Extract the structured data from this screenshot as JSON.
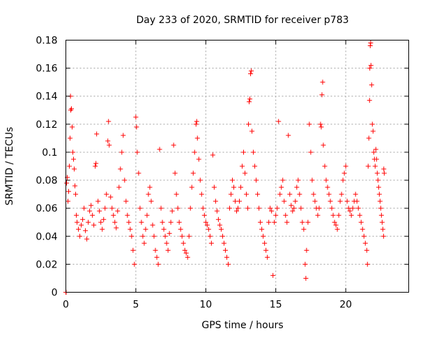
{
  "chart_data": {
    "type": "scatter",
    "title": "Day 233 of 2020, SRMTID for receiver p783",
    "xlabel": "GPS time / hours",
    "ylabel": "SRMTID / TECUs",
    "xlim": [
      0,
      24.5
    ],
    "ylim": [
      0,
      0.18
    ],
    "xticks": [
      0,
      5,
      10,
      15,
      20
    ],
    "xtick_labels": [
      "0",
      "5",
      "10",
      "15",
      "20"
    ],
    "yticks": [
      0,
      0.02,
      0.04,
      0.06,
      0.08,
      0.1,
      0.12,
      0.14,
      0.16,
      0.18
    ],
    "ytick_labels": [
      "0",
      "0.02",
      "0.04",
      "0.06",
      "0.08",
      "0.1",
      "0.12",
      "0.14",
      "0.16",
      "0.18"
    ],
    "grid": true,
    "marker": "+",
    "color": "#ff0000",
    "series": [
      {
        "name": "SRMTID",
        "points": [
          [
            0.0,
            0.0
          ],
          [
            0.02,
            0.0
          ],
          [
            0.05,
            0.078
          ],
          [
            0.1,
            0.082
          ],
          [
            0.15,
            0.065
          ],
          [
            0.2,
            0.072
          ],
          [
            0.25,
            0.09
          ],
          [
            0.3,
            0.11
          ],
          [
            0.33,
            0.14
          ],
          [
            0.35,
            0.13
          ],
          [
            0.4,
            0.131
          ],
          [
            0.45,
            0.118
          ],
          [
            0.5,
            0.1
          ],
          [
            0.55,
            0.095
          ],
          [
            0.6,
            0.088
          ],
          [
            0.65,
            0.076
          ],
          [
            0.7,
            0.07
          ],
          [
            0.75,
            0.055
          ],
          [
            0.8,
            0.05
          ],
          [
            0.9,
            0.045
          ],
          [
            1.0,
            0.04
          ],
          [
            1.1,
            0.048
          ],
          [
            1.2,
            0.052
          ],
          [
            1.3,
            0.06
          ],
          [
            1.4,
            0.044
          ],
          [
            1.5,
            0.038
          ],
          [
            1.6,
            0.05
          ],
          [
            1.7,
            0.058
          ],
          [
            1.8,
            0.062
          ],
          [
            1.9,
            0.055
          ],
          [
            2.0,
            0.048
          ],
          [
            2.1,
            0.09
          ],
          [
            2.15,
            0.092
          ],
          [
            2.2,
            0.113
          ],
          [
            2.3,
            0.065
          ],
          [
            2.4,
            0.058
          ],
          [
            2.5,
            0.05
          ],
          [
            2.6,
            0.045
          ],
          [
            2.7,
            0.052
          ],
          [
            2.8,
            0.06
          ],
          [
            2.9,
            0.07
          ],
          [
            3.0,
            0.108
          ],
          [
            3.05,
            0.122
          ],
          [
            3.1,
            0.105
          ],
          [
            3.2,
            0.068
          ],
          [
            3.3,
            0.06
          ],
          [
            3.4,
            0.055
          ],
          [
            3.5,
            0.05
          ],
          [
            3.6,
            0.046
          ],
          [
            3.7,
            0.058
          ],
          [
            3.8,
            0.075
          ],
          [
            3.9,
            0.088
          ],
          [
            4.0,
            0.1
          ],
          [
            4.1,
            0.112
          ],
          [
            4.2,
            0.08
          ],
          [
            4.3,
            0.065
          ],
          [
            4.4,
            0.055
          ],
          [
            4.5,
            0.05
          ],
          [
            4.6,
            0.045
          ],
          [
            4.7,
            0.04
          ],
          [
            4.8,
            0.03
          ],
          [
            4.9,
            0.02
          ],
          [
            5.0,
            0.125
          ],
          [
            5.05,
            0.118
          ],
          [
            5.1,
            0.1
          ],
          [
            5.2,
            0.085
          ],
          [
            5.3,
            0.06
          ],
          [
            5.4,
            0.05
          ],
          [
            5.5,
            0.04
          ],
          [
            5.6,
            0.035
          ],
          [
            5.7,
            0.045
          ],
          [
            5.8,
            0.055
          ],
          [
            5.9,
            0.07
          ],
          [
            6.0,
            0.075
          ],
          [
            6.1,
            0.065
          ],
          [
            6.2,
            0.048
          ],
          [
            6.3,
            0.04
          ],
          [
            6.4,
            0.03
          ],
          [
            6.5,
            0.025
          ],
          [
            6.6,
            0.02
          ],
          [
            6.7,
            0.102
          ],
          [
            6.8,
            0.06
          ],
          [
            6.9,
            0.05
          ],
          [
            7.0,
            0.045
          ],
          [
            7.1,
            0.04
          ],
          [
            7.2,
            0.035
          ],
          [
            7.3,
            0.03
          ],
          [
            7.4,
            0.042
          ],
          [
            7.5,
            0.05
          ],
          [
            7.6,
            0.058
          ],
          [
            7.7,
            0.105
          ],
          [
            7.8,
            0.085
          ],
          [
            7.9,
            0.07
          ],
          [
            8.0,
            0.06
          ],
          [
            8.1,
            0.05
          ],
          [
            8.2,
            0.045
          ],
          [
            8.3,
            0.04
          ],
          [
            8.4,
            0.035
          ],
          [
            8.5,
            0.03
          ],
          [
            8.6,
            0.028
          ],
          [
            8.7,
            0.025
          ],
          [
            8.8,
            0.04
          ],
          [
            8.9,
            0.06
          ],
          [
            9.0,
            0.075
          ],
          [
            9.1,
            0.085
          ],
          [
            9.2,
            0.1
          ],
          [
            9.3,
            0.12
          ],
          [
            9.35,
            0.122
          ],
          [
            9.4,
            0.11
          ],
          [
            9.5,
            0.095
          ],
          [
            9.6,
            0.08
          ],
          [
            9.7,
            0.07
          ],
          [
            9.8,
            0.06
          ],
          [
            9.9,
            0.055
          ],
          [
            10.0,
            0.05
          ],
          [
            10.1,
            0.048
          ],
          [
            10.2,
            0.045
          ],
          [
            10.3,
            0.04
          ],
          [
            10.4,
            0.035
          ],
          [
            10.5,
            0.098
          ],
          [
            10.6,
            0.075
          ],
          [
            10.7,
            0.065
          ],
          [
            10.8,
            0.058
          ],
          [
            10.9,
            0.052
          ],
          [
            11.0,
            0.048
          ],
          [
            11.1,
            0.045
          ],
          [
            11.2,
            0.04
          ],
          [
            11.3,
            0.035
          ],
          [
            11.4,
            0.03
          ],
          [
            11.5,
            0.025
          ],
          [
            11.6,
            0.02
          ],
          [
            11.7,
            0.06
          ],
          [
            11.8,
            0.07
          ],
          [
            11.9,
            0.08
          ],
          [
            12.0,
            0.075
          ],
          [
            12.1,
            0.065
          ],
          [
            12.2,
            0.058
          ],
          [
            12.3,
            0.06
          ],
          [
            12.4,
            0.065
          ],
          [
            12.5,
            0.075
          ],
          [
            12.6,
            0.09
          ],
          [
            12.7,
            0.1
          ],
          [
            12.8,
            0.085
          ],
          [
            12.9,
            0.07
          ],
          [
            13.0,
            0.06
          ],
          [
            13.05,
            0.12
          ],
          [
            13.1,
            0.136
          ],
          [
            13.15,
            0.138
          ],
          [
            13.2,
            0.156
          ],
          [
            13.25,
            0.158
          ],
          [
            13.3,
            0.115
          ],
          [
            13.4,
            0.1
          ],
          [
            13.5,
            0.09
          ],
          [
            13.6,
            0.08
          ],
          [
            13.7,
            0.07
          ],
          [
            13.8,
            0.06
          ],
          [
            13.9,
            0.05
          ],
          [
            14.0,
            0.045
          ],
          [
            14.1,
            0.04
          ],
          [
            14.2,
            0.035
          ],
          [
            14.3,
            0.03
          ],
          [
            14.4,
            0.025
          ],
          [
            14.5,
            0.05
          ],
          [
            14.6,
            0.06
          ],
          [
            14.7,
            0.058
          ],
          [
            14.8,
            0.012
          ],
          [
            14.9,
            0.05
          ],
          [
            15.0,
            0.055
          ],
          [
            15.1,
            0.06
          ],
          [
            15.2,
            0.122
          ],
          [
            15.3,
            0.07
          ],
          [
            15.4,
            0.075
          ],
          [
            15.5,
            0.08
          ],
          [
            15.6,
            0.065
          ],
          [
            15.7,
            0.055
          ],
          [
            15.8,
            0.05
          ],
          [
            15.9,
            0.112
          ],
          [
            16.0,
            0.07
          ],
          [
            16.1,
            0.062
          ],
          [
            16.2,
            0.058
          ],
          [
            16.3,
            0.06
          ],
          [
            16.4,
            0.065
          ],
          [
            16.5,
            0.075
          ],
          [
            16.6,
            0.08
          ],
          [
            16.7,
            0.07
          ],
          [
            16.8,
            0.06
          ],
          [
            16.9,
            0.05
          ],
          [
            17.0,
            0.045
          ],
          [
            17.1,
            0.02
          ],
          [
            17.15,
            0.01
          ],
          [
            17.2,
            0.03
          ],
          [
            17.3,
            0.05
          ],
          [
            17.4,
            0.12
          ],
          [
            17.5,
            0.1
          ],
          [
            17.6,
            0.08
          ],
          [
            17.7,
            0.07
          ],
          [
            17.8,
            0.065
          ],
          [
            17.9,
            0.06
          ],
          [
            18.0,
            0.055
          ],
          [
            18.1,
            0.06
          ],
          [
            18.2,
            0.12
          ],
          [
            18.25,
            0.118
          ],
          [
            18.3,
            0.141
          ],
          [
            18.35,
            0.15
          ],
          [
            18.4,
            0.105
          ],
          [
            18.5,
            0.09
          ],
          [
            18.6,
            0.08
          ],
          [
            18.7,
            0.075
          ],
          [
            18.8,
            0.07
          ],
          [
            18.9,
            0.065
          ],
          [
            19.0,
            0.06
          ],
          [
            19.1,
            0.055
          ],
          [
            19.2,
            0.05
          ],
          [
            19.3,
            0.048
          ],
          [
            19.4,
            0.045
          ],
          [
            19.5,
            0.055
          ],
          [
            19.6,
            0.065
          ],
          [
            19.7,
            0.07
          ],
          [
            19.8,
            0.08
          ],
          [
            19.9,
            0.085
          ],
          [
            20.0,
            0.09
          ],
          [
            20.1,
            0.065
          ],
          [
            20.2,
            0.06
          ],
          [
            20.3,
            0.058
          ],
          [
            20.4,
            0.055
          ],
          [
            20.5,
            0.06
          ],
          [
            20.6,
            0.065
          ],
          [
            20.7,
            0.07
          ],
          [
            20.8,
            0.065
          ],
          [
            20.9,
            0.06
          ],
          [
            21.0,
            0.055
          ],
          [
            21.1,
            0.05
          ],
          [
            21.2,
            0.045
          ],
          [
            21.3,
            0.04
          ],
          [
            21.4,
            0.035
          ],
          [
            21.5,
            0.03
          ],
          [
            21.55,
            0.02
          ],
          [
            21.6,
            0.09
          ],
          [
            21.65,
            0.11
          ],
          [
            21.7,
            0.137
          ],
          [
            21.72,
            0.16
          ],
          [
            21.75,
            0.176
          ],
          [
            21.78,
            0.178
          ],
          [
            21.8,
            0.162
          ],
          [
            21.85,
            0.148
          ],
          [
            21.9,
            0.12
          ],
          [
            21.95,
            0.115
          ],
          [
            22.0,
            0.1
          ],
          [
            22.05,
            0.095
          ],
          [
            22.1,
            0.09
          ],
          [
            22.15,
            0.102
          ],
          [
            22.2,
            0.095
          ],
          [
            22.25,
            0.085
          ],
          [
            22.3,
            0.08
          ],
          [
            22.35,
            0.075
          ],
          [
            22.4,
            0.07
          ],
          [
            22.45,
            0.065
          ],
          [
            22.5,
            0.06
          ],
          [
            22.55,
            0.055
          ],
          [
            22.6,
            0.05
          ],
          [
            22.65,
            0.045
          ],
          [
            22.7,
            0.04
          ],
          [
            22.72,
            0.088
          ],
          [
            22.75,
            0.085
          ]
        ]
      }
    ]
  }
}
